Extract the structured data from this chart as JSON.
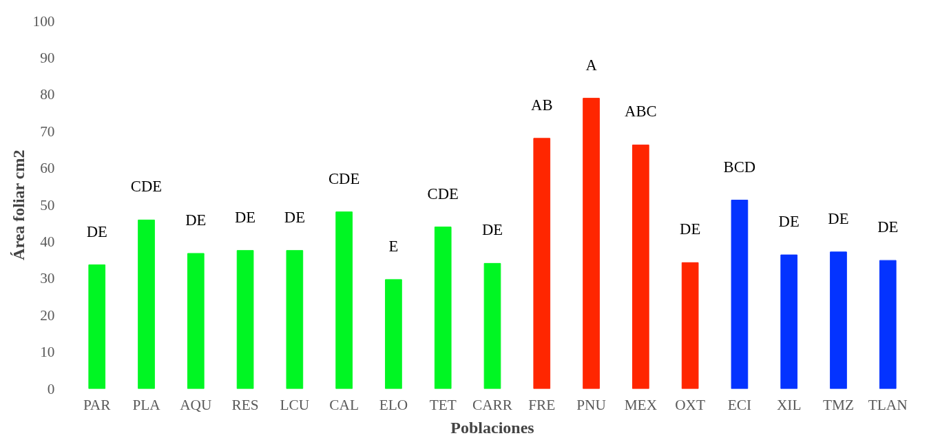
{
  "chart_data": {
    "type": "bar",
    "xlabel": "Poblaciones",
    "ylabel": "Área foliar cm2",
    "categories": [
      "PAR",
      "PLA",
      "AQU",
      "RES",
      "LCU",
      "CAL",
      "ELO",
      "TET",
      "CARR",
      "FRE",
      "PNU",
      "MEX",
      "OXT",
      "ECI",
      "XIL",
      "TMZ",
      "TLAN"
    ],
    "values": [
      33.7,
      45.9,
      36.8,
      37.6,
      37.6,
      48.1,
      29.7,
      44.0,
      34.1,
      68.1,
      79.0,
      66.3,
      34.3,
      51.3,
      36.4,
      37.2,
      34.9
    ],
    "colors": [
      "#00f623",
      "#00f623",
      "#00f623",
      "#00f623",
      "#00f623",
      "#00f623",
      "#00f623",
      "#00f623",
      "#00f623",
      "#ff2600",
      "#ff2600",
      "#ff2600",
      "#ff2600",
      "#0433ff",
      "#0433ff",
      "#0433ff",
      "#0433ff"
    ],
    "ylim": [
      0,
      100
    ],
    "yticks": [
      0,
      10,
      20,
      30,
      40,
      50,
      60,
      70,
      80,
      90,
      100
    ],
    "grid": false,
    "annotations": [
      "DE",
      "CDE",
      "DE",
      "DE",
      "DE",
      "CDE",
      "E",
      "CDE",
      "DE",
      "AB",
      "A",
      "ABC",
      "DE",
      "BCD",
      "DE",
      "DE",
      "DE"
    ]
  }
}
